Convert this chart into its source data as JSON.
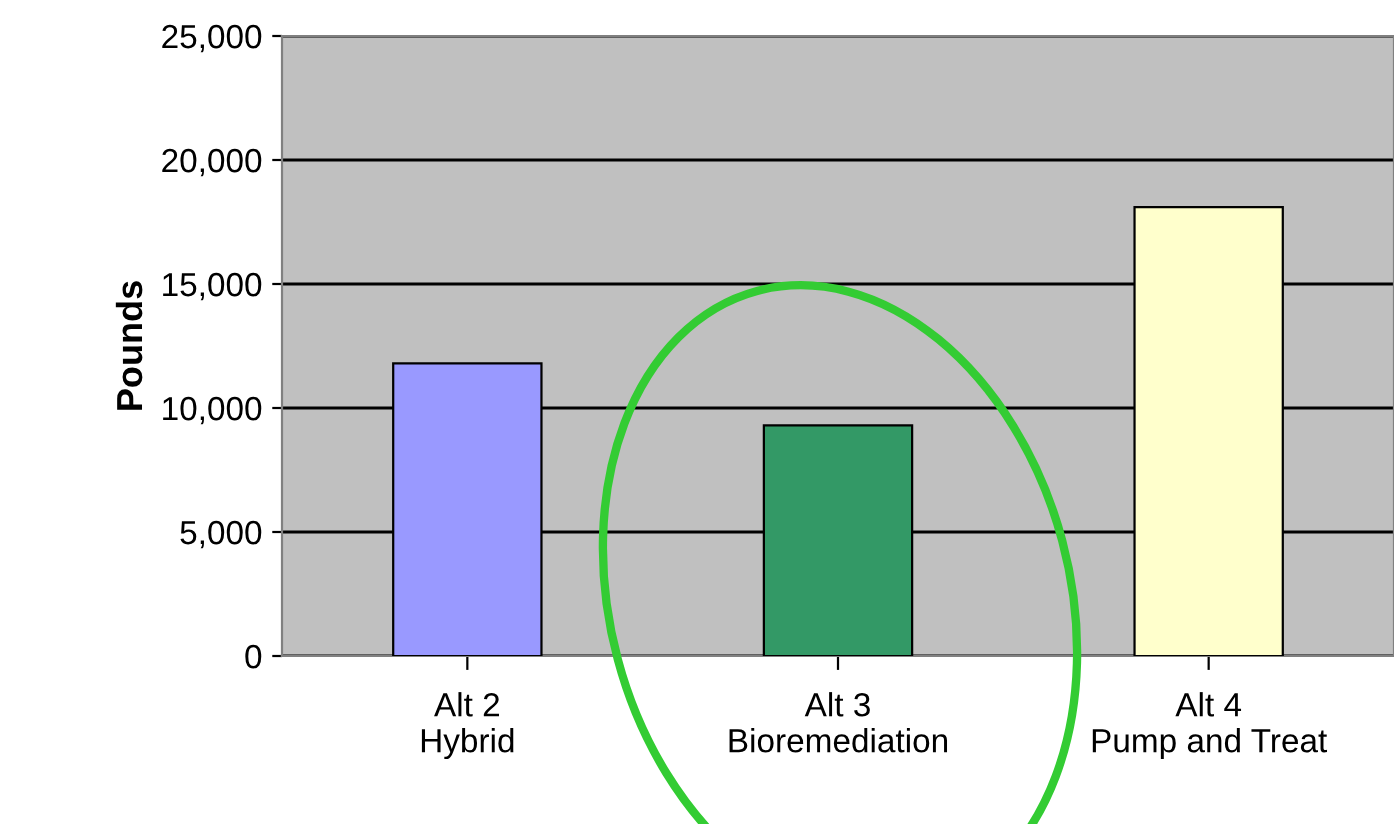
{
  "chart_data": {
    "type": "bar",
    "ylabel": "Pounds",
    "categories": [
      "Alt 2\nHybrid",
      "Alt 3\nBioremediation",
      "Alt 4\nPump and Treat"
    ],
    "values": [
      11800,
      9300,
      18100
    ],
    "colors": [
      "#9999ff",
      "#339966",
      "#ffffcc"
    ],
    "ylim": [
      0,
      25000
    ],
    "yticks": [
      {
        "value": 0,
        "label": "0"
      },
      {
        "value": 5000,
        "label": "5,000"
      },
      {
        "value": 10000,
        "label": "10,000"
      },
      {
        "value": 15000,
        "label": "15,000"
      },
      {
        "value": 20000,
        "label": "20,000"
      },
      {
        "value": 25000,
        "label": "25,000"
      }
    ],
    "grid": "y",
    "legend": false
  }
}
